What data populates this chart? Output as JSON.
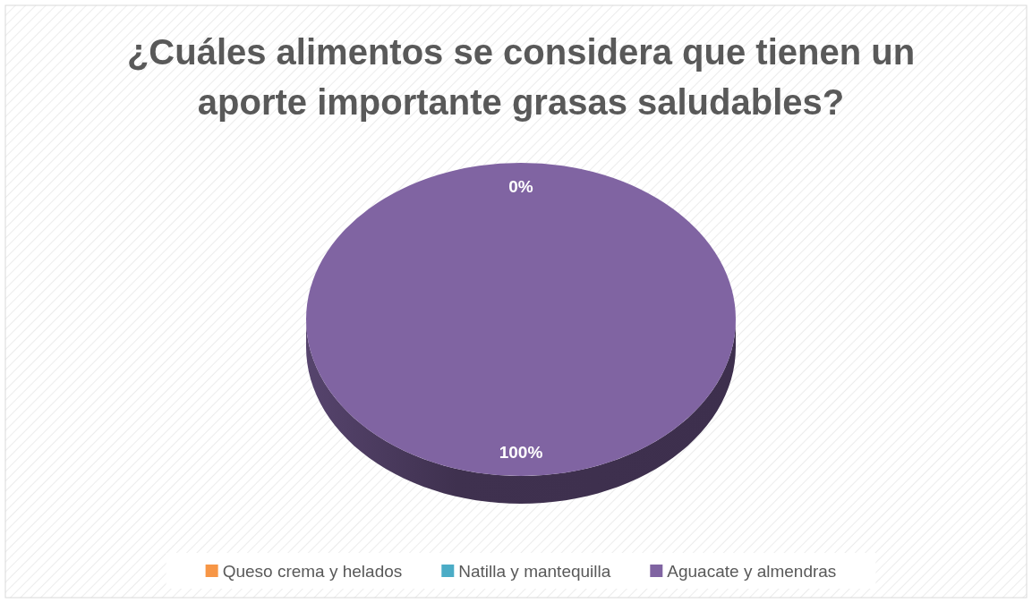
{
  "chart_data": {
    "type": "pie",
    "title": "¿Cuáles alimentos se considera que tienen un aporte importante grasas saludables?",
    "categories": [
      "Queso crema y helados",
      "Natilla y mantequilla",
      "Aguacate y almendras"
    ],
    "values": [
      0,
      0,
      100
    ],
    "colors": [
      "#f79646",
      "#4bacc6",
      "#8064a2"
    ],
    "value_labels": [
      "0%",
      null,
      "100%"
    ],
    "legend": "bottom"
  }
}
